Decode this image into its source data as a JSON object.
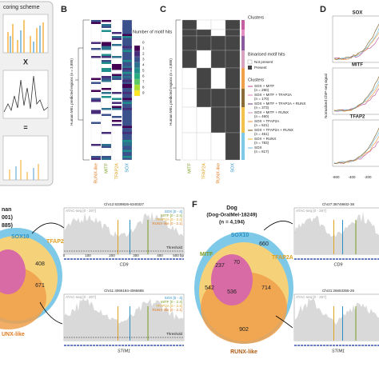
{
  "panelA": {
    "title": "coring scheme",
    "times": "X",
    "equals": "="
  },
  "panelB": {
    "label": "B",
    "ylabel": "Human MEL predicted regions (n = 3,885)",
    "legend_title": "Number of motif hits",
    "legend_ticks": [
      "0",
      "1",
      "2",
      "3",
      "4",
      "5",
      "6",
      "7",
      "8",
      "9"
    ],
    "columns": [
      "RUNX-like",
      "MITF",
      "TFAP2A",
      "SOX"
    ]
  },
  "panelC": {
    "label": "C",
    "ylabel": "Human MEL predicted regions (n = 3,885)",
    "clusters_bar": "Clusters",
    "binarised_title": "Binarised motif hits",
    "not_present": "Not present",
    "present": "Present",
    "clusters_title": "Clusters",
    "clusters": [
      "SOX + MITF",
      "(n = 280)",
      "SOX + MITF + TFAP2A",
      "(n = 170)",
      "SOX + MITF + TFAP2A + RUNX",
      "(n = 373)",
      "SOX + MITF + RUNX",
      "(n = 460)",
      "SOX + TFAP2A",
      "(n = 521)",
      "SOX + TFAP2A + RUNX",
      "(n = 461)",
      "SOX + RUNX",
      "(n = 783)",
      "SOX",
      "(n = 817)"
    ],
    "columns": [
      "MITF",
      "TFAP2A",
      "RUNX-like",
      "SOX"
    ]
  },
  "panelD": {
    "label": "D",
    "plots": [
      "SOX",
      "MITF",
      "TFAP2"
    ],
    "ylabel": "Normalised ChIP-seq signal",
    "xticks": [
      "-600",
      "-400",
      "-200"
    ]
  },
  "panelE": {
    "title1": "nan",
    "title2": "001)",
    "title3": "885)",
    "sox": "SOX10",
    "tfap": "TFAP2A",
    "runx": "UNX-like",
    "n1": "408",
    "n2": "671",
    "tracks": [
      {
        "coord": "Chr12:6339826-6340327",
        "atac": "ATAC-seq [0 - 207]",
        "sox": "SOX [0 - 4]",
        "mitf": "MITF [0 - 2.4]",
        "tfap": "TFAP2A [0 - 2.4]",
        "runx": "RUNX-like [0 - 2.1]",
        "threshold": "Threshold",
        "gene": "CD9",
        "axis": [
          "0",
          "100",
          "200",
          "300",
          "400",
          "500 bp"
        ]
      },
      {
        "coord": "Chr11:4066184-4066685",
        "atac": "ATAC-seq [0 - 207]",
        "sox": "SOX [0 - 4]",
        "mitf": "MITF [0 - 2.4]",
        "tfap": "TFAP2A [0 - 2.4]",
        "runx": "RUNX-like [0 - 2.1]",
        "threshold": "Threshold",
        "gene": "STIM1"
      }
    ]
  },
  "panelF": {
    "label": "F",
    "title1": "Dog",
    "title2": "(Dog-OralMel-18249)",
    "title3": "(n = 4,194)",
    "sox": "SOX10",
    "mitf": "MITF",
    "tfap": "TFAP2A",
    "runx": "RUNX-like",
    "counts": [
      "660",
      "237",
      "70",
      "542",
      "536",
      "714",
      "902"
    ],
    "tracks": [
      {
        "coord": "Chr27:38749602-38",
        "atac": "ATAC-seq [0 - 267]",
        "gene": "CD9"
      },
      {
        "coord": "Chr21:26653355-26",
        "atac": "ATAC-seq [0 - 267]",
        "gene": "STIM1"
      }
    ]
  }
}
